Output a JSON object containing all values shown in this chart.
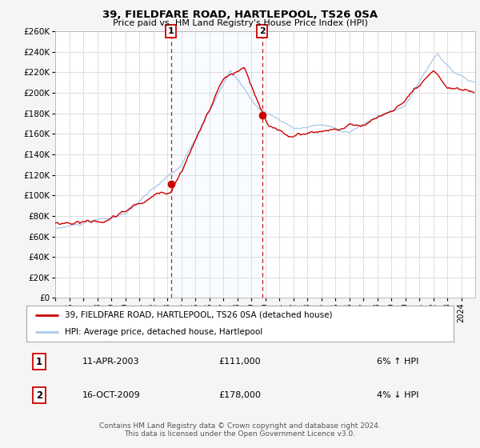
{
  "title": "39, FIELDFARE ROAD, HARTLEPOOL, TS26 0SA",
  "subtitle": "Price paid vs. HM Land Registry's House Price Index (HPI)",
  "ylim": [
    0,
    260000
  ],
  "yticks": [
    0,
    20000,
    40000,
    60000,
    80000,
    100000,
    120000,
    140000,
    160000,
    180000,
    200000,
    220000,
    240000,
    260000
  ],
  "xlim_start": 1995.0,
  "xlim_end": 2025.0,
  "xticks": [
    1995,
    1996,
    1997,
    1998,
    1999,
    2000,
    2001,
    2002,
    2003,
    2004,
    2005,
    2006,
    2007,
    2008,
    2009,
    2010,
    2011,
    2012,
    2013,
    2014,
    2015,
    2016,
    2017,
    2018,
    2019,
    2020,
    2021,
    2022,
    2023,
    2024
  ],
  "hpi_color": "#a8c8e8",
  "price_color": "#cc0000",
  "sale1_date_num": 2003.27,
  "sale1_price": 111000,
  "sale2_date_num": 2009.79,
  "sale2_price": 178000,
  "vline_color": "#cc0000",
  "shade_color": "#ddeeff",
  "point_color": "#cc0000",
  "legend_line1": "39, FIELDFARE ROAD, HARTLEPOOL, TS26 0SA (detached house)",
  "legend_line2": "HPI: Average price, detached house, Hartlepool",
  "table_row1_label": "1",
  "table_row1_date": "11-APR-2003",
  "table_row1_price": "£111,000",
  "table_row1_hpi": "6% ↑ HPI",
  "table_row2_label": "2",
  "table_row2_date": "16-OCT-2009",
  "table_row2_price": "£178,000",
  "table_row2_hpi": "4% ↓ HPI",
  "footer1": "Contains HM Land Registry data © Crown copyright and database right 2024.",
  "footer2": "This data is licensed under the Open Government Licence v3.0.",
  "background_color": "#f5f5f5",
  "plot_bg_color": "#ffffff",
  "grid_color": "#d8d8d8"
}
